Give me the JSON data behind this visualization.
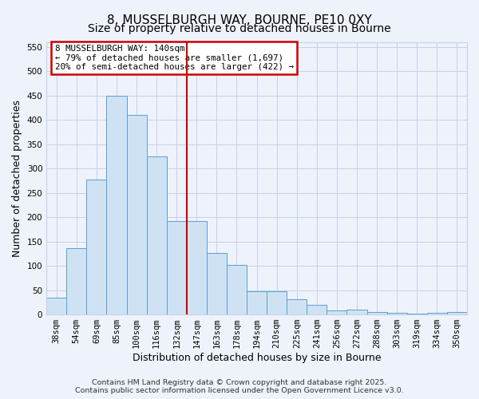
{
  "title": "8, MUSSELBURGH WAY, BOURNE, PE10 0XY",
  "subtitle": "Size of property relative to detached houses in Bourne",
  "xlabel": "Distribution of detached houses by size in Bourne",
  "ylabel": "Number of detached properties",
  "bar_labels": [
    "38sqm",
    "54sqm",
    "69sqm",
    "85sqm",
    "100sqm",
    "116sqm",
    "132sqm",
    "147sqm",
    "163sqm",
    "178sqm",
    "194sqm",
    "210sqm",
    "225sqm",
    "241sqm",
    "256sqm",
    "272sqm",
    "288sqm",
    "303sqm",
    "319sqm",
    "334sqm",
    "350sqm"
  ],
  "bar_values": [
    35,
    137,
    278,
    450,
    410,
    325,
    192,
    192,
    126,
    101,
    47,
    47,
    32,
    20,
    8,
    10,
    5,
    4,
    2,
    4,
    5
  ],
  "bar_color": "#cfe2f3",
  "bar_edge_color": "#5a9fd4",
  "vline_color": "#cc0000",
  "vline_x_index": 6.5,
  "ylim": [
    0,
    560
  ],
  "yticks": [
    0,
    50,
    100,
    150,
    200,
    250,
    300,
    350,
    400,
    450,
    500,
    550
  ],
  "annotation_title": "8 MUSSELBURGH WAY: 140sqm",
  "annotation_line1": "← 79% of detached houses are smaller (1,697)",
  "annotation_line2": "20% of semi-detached houses are larger (422) →",
  "annotation_box_color": "#cc0000",
  "footer_line1": "Contains HM Land Registry data © Crown copyright and database right 2025.",
  "footer_line2": "Contains public sector information licensed under the Open Government Licence v3.0.",
  "background_color": "#eef2fa",
  "grid_color": "#c8d0e8",
  "title_fontsize": 11,
  "subtitle_fontsize": 10,
  "axis_label_fontsize": 9,
  "tick_fontsize": 7.5,
  "annotation_fontsize": 7.8,
  "footer_fontsize": 6.8
}
